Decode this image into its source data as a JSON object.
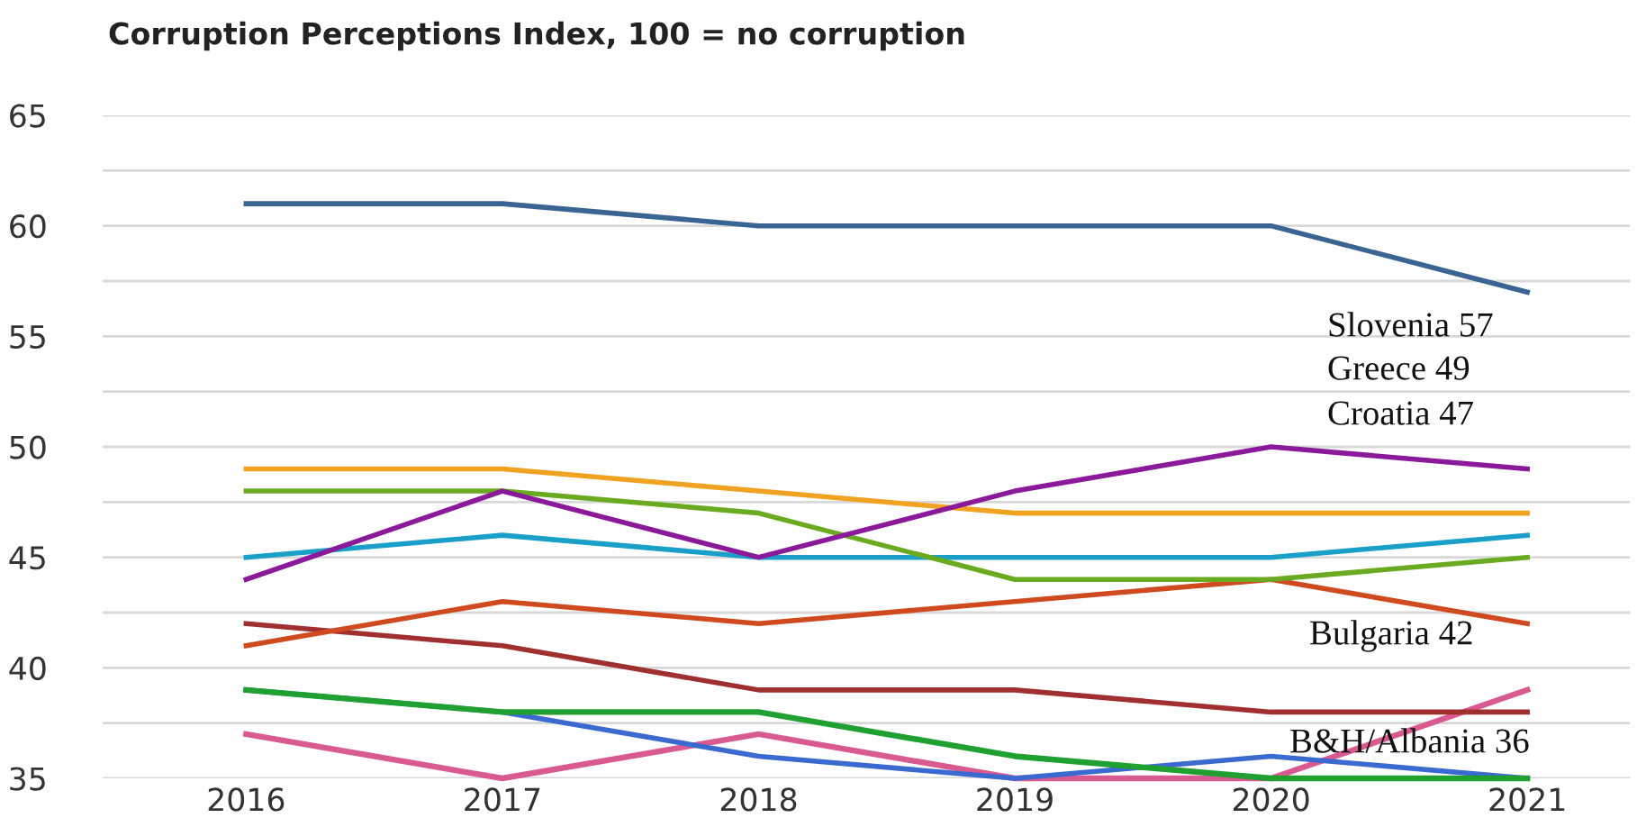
{
  "chart_data": {
    "type": "line",
    "title": "Corruption Perceptions Index, 100 = no corruption",
    "categories": [
      "2016",
      "2017",
      "2018",
      "2019",
      "2020",
      "2021"
    ],
    "series": [
      {
        "color": "#3a6592",
        "values": [
          61,
          61,
          60,
          60,
          60,
          57
        ]
      },
      {
        "color": "#8b1a9b",
        "values": [
          44,
          48,
          45,
          48,
          50,
          49
        ]
      },
      {
        "color": "#f0a323",
        "values": [
          49,
          49,
          48,
          47,
          47,
          47
        ]
      },
      {
        "color": "#6aaa20",
        "values": [
          48,
          48,
          47,
          44,
          44,
          45
        ]
      },
      {
        "color": "#1aa0c8",
        "values": [
          45,
          46,
          45,
          45,
          45,
          46
        ]
      },
      {
        "color": "#d04a20",
        "values": [
          41,
          43,
          42,
          43,
          44,
          42
        ]
      },
      {
        "color": "#a03030",
        "values": [
          42,
          41,
          39,
          39,
          38,
          38
        ]
      },
      {
        "color": "#20a030",
        "values": [
          39,
          38,
          38,
          36,
          35,
          35
        ]
      },
      {
        "color": "#3a6ad0",
        "values": [
          39,
          38,
          36,
          35,
          36,
          35
        ]
      },
      {
        "color": "#d85a90",
        "values": [
          37,
          35,
          37,
          35,
          35,
          39
        ]
      }
    ],
    "annotations": [
      "Slovenia 57",
      "Greece 49",
      "Croatia 47",
      "Bulgaria 42",
      "B&H/Albania 36"
    ],
    "ylim": [
      35,
      65
    ],
    "yticks": [
      35,
      {
        "value": 37.5,
        "label": null
      },
      40,
      {
        "value": 42.5,
        "label": null
      },
      45,
      {
        "value": 47.5,
        "label": null
      },
      50,
      {
        "value": 52.5,
        "label": null
      },
      55,
      {
        "value": 57.5,
        "label": null
      },
      60,
      {
        "value": 62.5,
        "label": null
      },
      65
    ],
    "grid": "y",
    "marker": "none",
    "line_style": "solid"
  }
}
